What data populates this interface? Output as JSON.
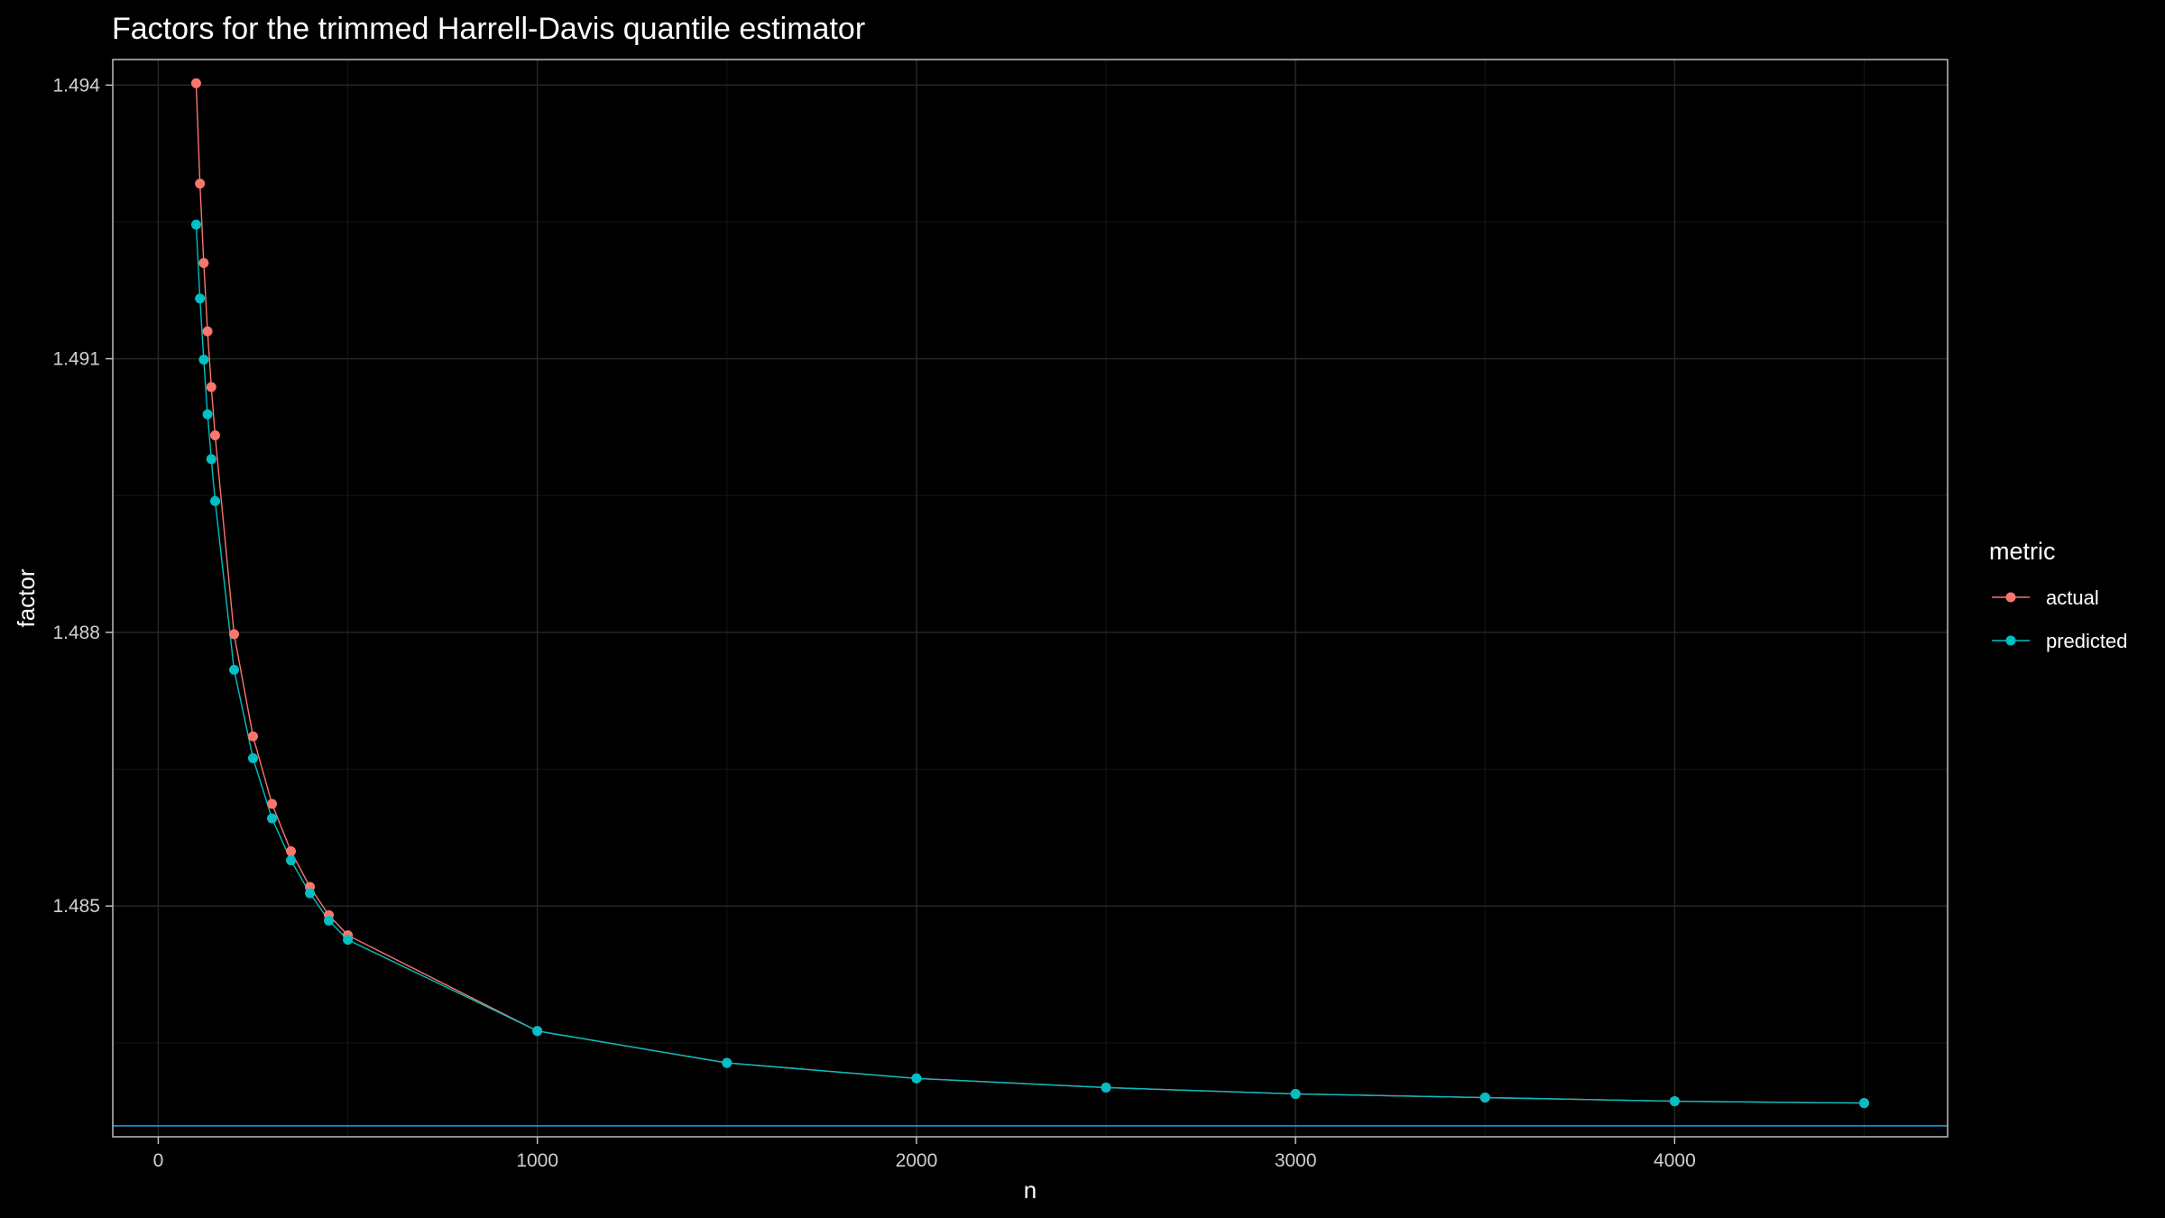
{
  "chart_data": {
    "type": "line",
    "title": "Factors for the trimmed Harrell-Davis quantile estimator",
    "xlabel": "n",
    "ylabel": "factor",
    "xlim": [
      -120,
      4720
    ],
    "ylim": [
      1.48247,
      1.49428
    ],
    "x_ticks": [
      0,
      1000,
      2000,
      3000,
      4000
    ],
    "x_tick_labels": [
      "0",
      "1000",
      "2000",
      "3000",
      "4000"
    ],
    "y_ticks": [
      1.485,
      1.488,
      1.491,
      1.494
    ],
    "y_tick_labels": [
      "1.485",
      "1.488",
      "1.491",
      "1.494"
    ],
    "grid": true,
    "legend": {
      "title": "metric",
      "position": "right"
    },
    "hline": {
      "y": 1.48259,
      "color": "#1f9fe8"
    },
    "x": [
      100,
      110,
      120,
      130,
      140,
      150,
      200,
      250,
      300,
      350,
      400,
      450,
      500,
      1000,
      1500,
      2000,
      2500,
      3000,
      3500,
      4000,
      4500
    ],
    "series": [
      {
        "name": "actual",
        "color": "#f8766d",
        "values": [
          1.49402,
          1.49292,
          1.49205,
          1.4913,
          1.49069,
          1.49016,
          1.48798,
          1.48686,
          1.48612,
          1.4856,
          1.48521,
          1.4849,
          1.48468,
          1.48363,
          1.48328,
          1.48311,
          1.48301,
          1.48294,
          1.4829,
          1.48286,
          1.48284
        ]
      },
      {
        "name": "predicted",
        "color": "#00bfc4",
        "values": [
          1.49247,
          1.49166,
          1.49099,
          1.49039,
          1.4899,
          1.48944,
          1.48759,
          1.48662,
          1.48596,
          1.4855,
          1.48514,
          1.48484,
          1.48463,
          1.48363,
          1.48328,
          1.48311,
          1.48301,
          1.48294,
          1.4829,
          1.48286,
          1.48284
        ]
      }
    ]
  }
}
